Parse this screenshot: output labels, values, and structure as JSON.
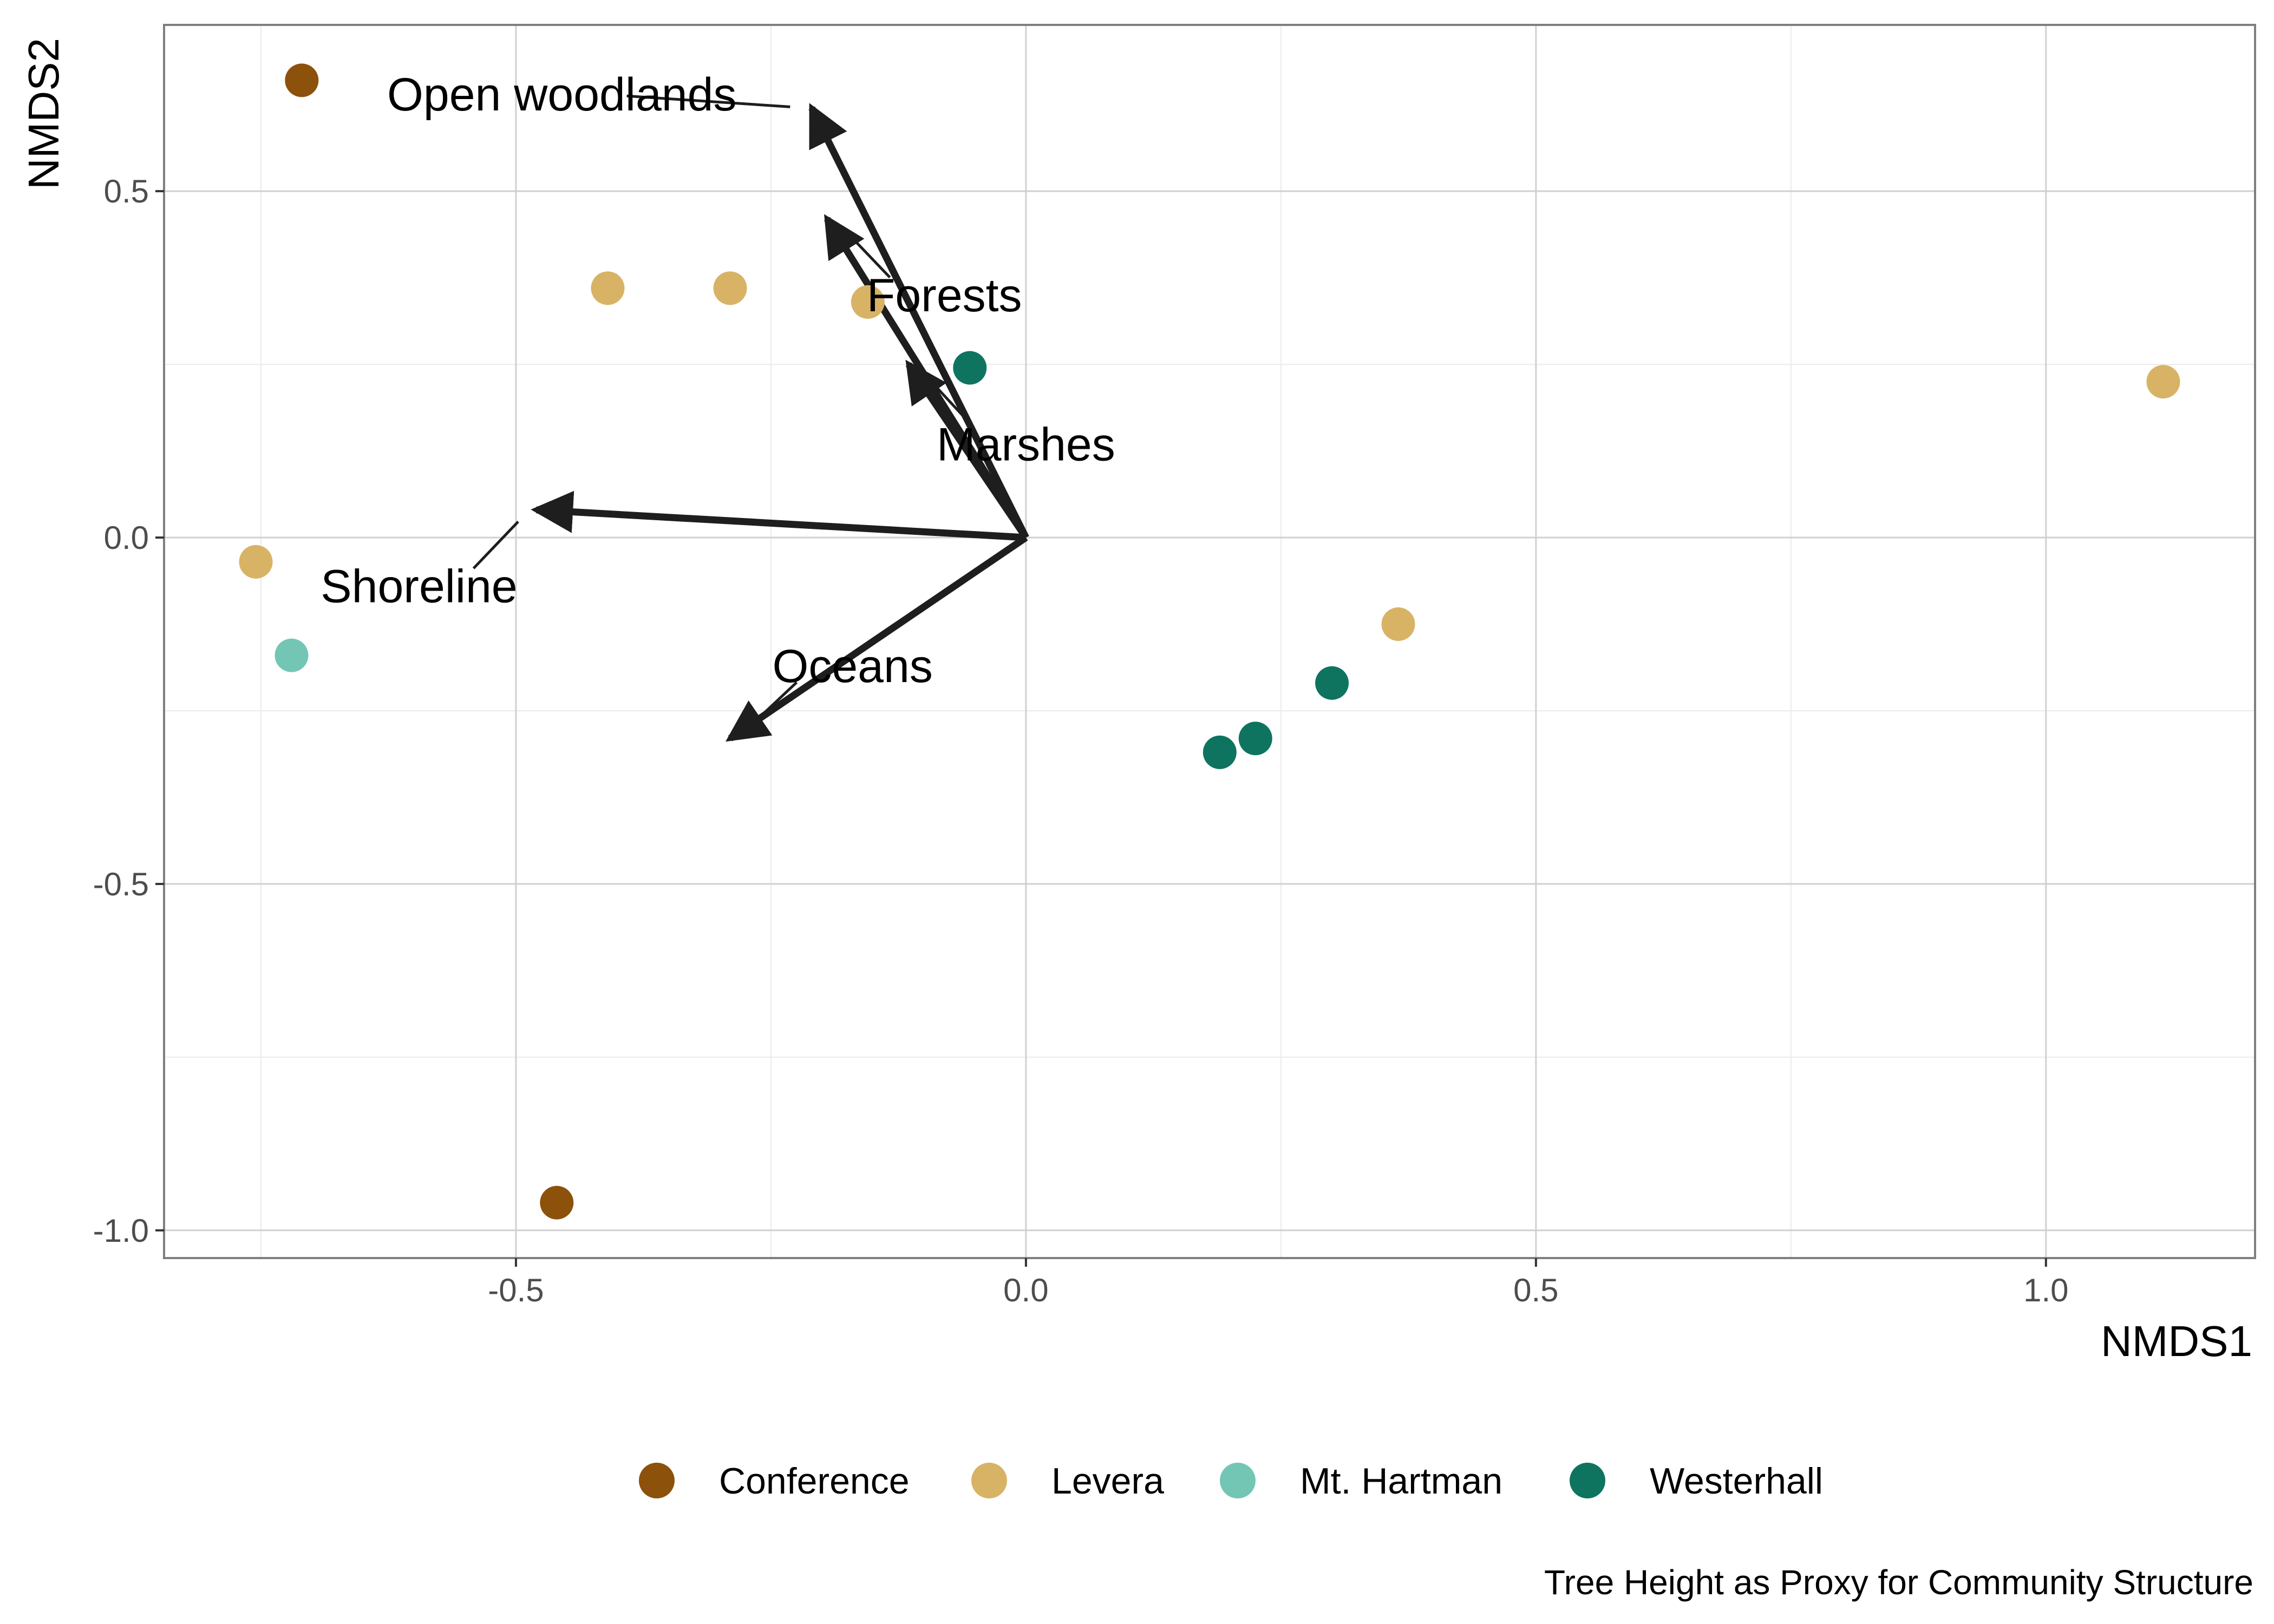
{
  "chart_data": {
    "type": "scatter",
    "xlabel": "NMDS1",
    "ylabel": "NMDS2",
    "caption": "Tree Height as Proxy for Community Structure",
    "xlim": [
      -0.845,
      1.205
    ],
    "ylim": [
      -1.04,
      0.74
    ],
    "x_ticks": [
      -0.5,
      0.0,
      0.5,
      1.0
    ],
    "x_tick_labels": [
      "-0.5",
      "0.0",
      "0.5",
      "1.0"
    ],
    "y_ticks": [
      -1.0,
      -0.5,
      0.0,
      0.5
    ],
    "y_tick_labels": [
      "-1.0",
      "-0.5",
      "0.0",
      "0.5"
    ],
    "grid": true,
    "legend_position": "bottom",
    "series": [
      {
        "name": "Conference",
        "color": "#8C510A",
        "points": [
          [
            -0.71,
            0.66
          ],
          [
            -0.46,
            -0.96
          ]
        ]
      },
      {
        "name": "Levera",
        "color": "#D8B365",
        "points": [
          [
            -0.41,
            0.36
          ],
          [
            -0.29,
            0.36
          ],
          [
            -0.155,
            0.34
          ],
          [
            -0.755,
            -0.035
          ],
          [
            0.365,
            -0.125
          ],
          [
            1.115,
            0.225
          ]
        ]
      },
      {
        "name": "Mt. Hartman",
        "color": "#74C6B4",
        "points": [
          [
            -0.72,
            -0.17
          ]
        ]
      },
      {
        "name": "Westerhall",
        "color": "#0E7460",
        "points": [
          [
            -0.055,
            0.245
          ],
          [
            0.19,
            -0.31
          ],
          [
            0.225,
            -0.29
          ],
          [
            0.3,
            -0.21
          ]
        ]
      }
    ],
    "vectors": [
      {
        "label": "Open woodlands",
        "x": -0.21,
        "y": 0.62,
        "label_x": -0.455,
        "label_y": 0.64
      },
      {
        "label": "Forests",
        "x": -0.195,
        "y": 0.46,
        "label_x": -0.08,
        "label_y": 0.35
      },
      {
        "label": "Marshes",
        "x": -0.115,
        "y": 0.25,
        "label_x": 0.0,
        "label_y": 0.135
      },
      {
        "label": "Shoreline",
        "x": -0.48,
        "y": 0.04,
        "label_x": -0.595,
        "label_y": -0.07
      },
      {
        "label": "Oceans",
        "x": -0.29,
        "y": -0.29,
        "label_x": -0.17,
        "label_y": -0.185
      }
    ]
  }
}
